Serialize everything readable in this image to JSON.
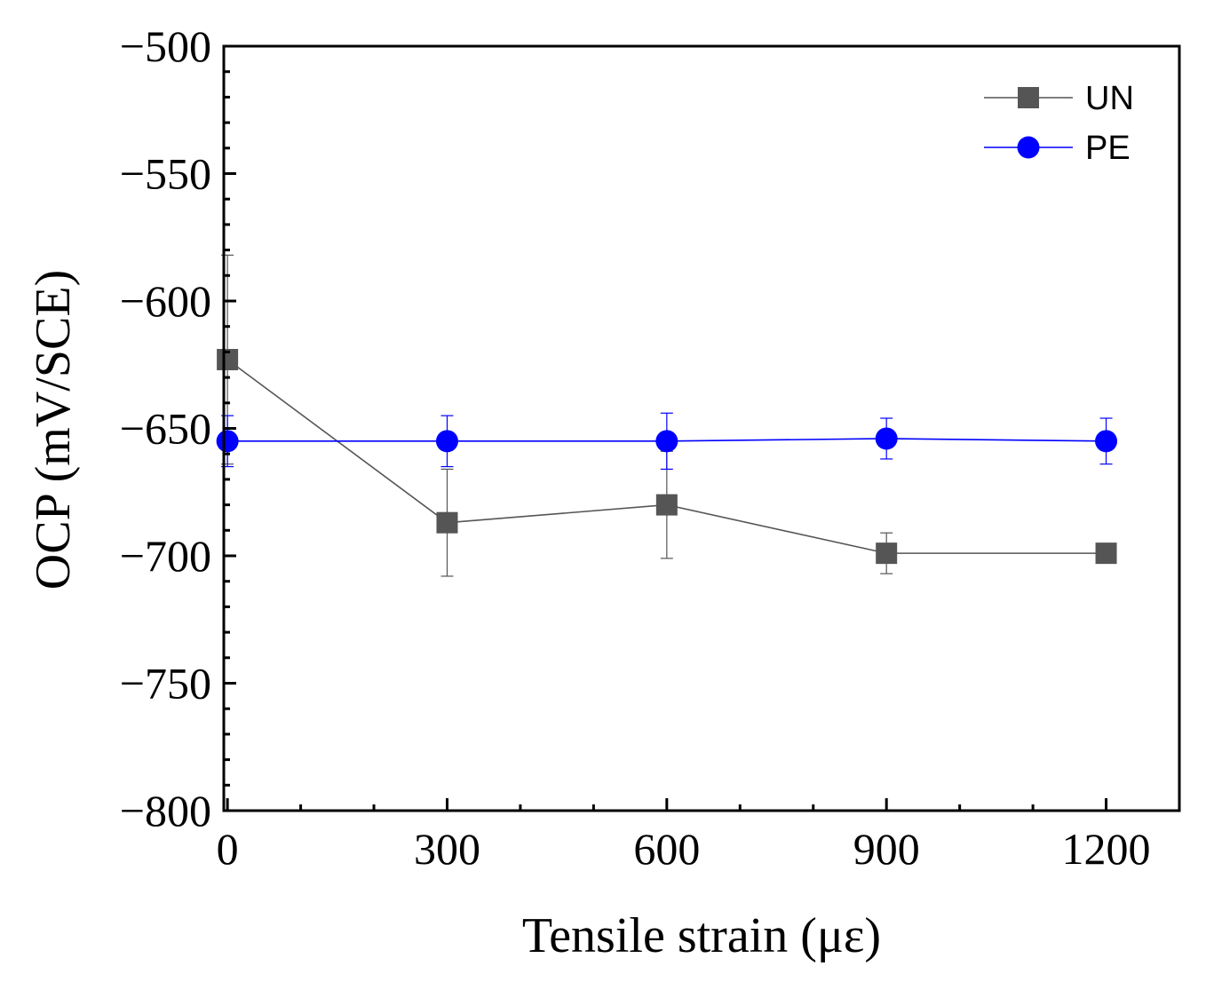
{
  "chart_data": {
    "type": "line",
    "title": "",
    "xlabel": "Tensile strain (με)",
    "ylabel": "OCP (mV/SCE)",
    "xlim": [
      -5,
      1300
    ],
    "ylim": [
      -800,
      -500
    ],
    "xticks": [
      0,
      300,
      600,
      900,
      1200
    ],
    "xtick_labels": [
      "0",
      "300",
      "600",
      "900",
      "1200"
    ],
    "yticks": [
      -800,
      -750,
      -700,
      -650,
      -600,
      -550,
      -500
    ],
    "ytick_labels": [
      "−800",
      "−750",
      "−700",
      "−650",
      "−600",
      "−550",
      "−500"
    ],
    "grid": false,
    "legend_position": "top-right",
    "x": [
      0,
      300,
      600,
      900,
      1200
    ],
    "series": [
      {
        "name": "UN",
        "color": "#555555",
        "marker": "square",
        "values": [
          -623,
          -687,
          -680,
          -699,
          -699
        ],
        "errors": [
          41,
          21,
          21,
          8,
          0
        ]
      },
      {
        "name": "PE",
        "color": "#0000ff",
        "marker": "circle",
        "values": [
          -655,
          -655,
          -655,
          -654,
          -655
        ],
        "errors": [
          10,
          10,
          11,
          8,
          9
        ]
      }
    ]
  }
}
